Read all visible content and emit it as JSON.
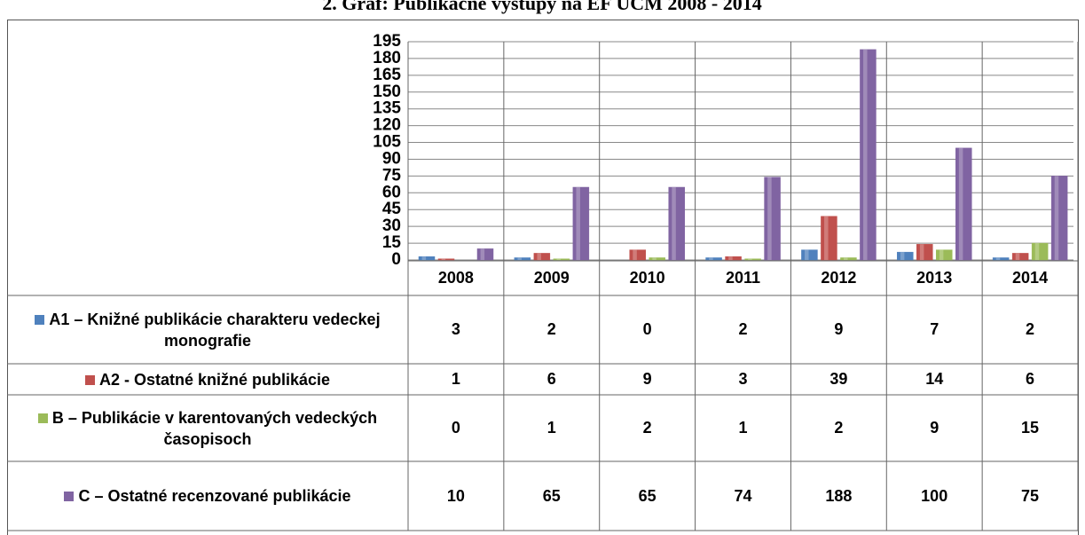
{
  "chart_data": {
    "type": "bar",
    "title": "2. Graf: Publikačné výstupy na EF UCM 2008 - 2014",
    "categories": [
      "2008",
      "2009",
      "2010",
      "2011",
      "2012",
      "2013",
      "2014"
    ],
    "series": [
      {
        "name": "A1 – Knižné publikácie charakteru vedeckej monografie",
        "color": "#4f81bd",
        "values": [
          3,
          2,
          0,
          2,
          9,
          7,
          2
        ]
      },
      {
        "name": "A2 -  Ostatné knižné publikácie",
        "color": "#c0504d",
        "values": [
          1,
          6,
          9,
          3,
          39,
          14,
          6
        ]
      },
      {
        "name": "B – Publikácie v karentovaných vedeckých časopisoch",
        "color": "#9bbb59",
        "values": [
          0,
          1,
          2,
          1,
          2,
          9,
          15
        ]
      },
      {
        "name": "C – Ostatné recenzované publikácie",
        "color": "#8064a2",
        "values": [
          10,
          65,
          65,
          74,
          188,
          100,
          75
        ]
      }
    ],
    "ylim": [
      0,
      195
    ],
    "yticks": [
      0,
      15,
      30,
      45,
      60,
      75,
      90,
      105,
      120,
      135,
      150,
      165,
      180,
      195
    ],
    "grid": true
  }
}
